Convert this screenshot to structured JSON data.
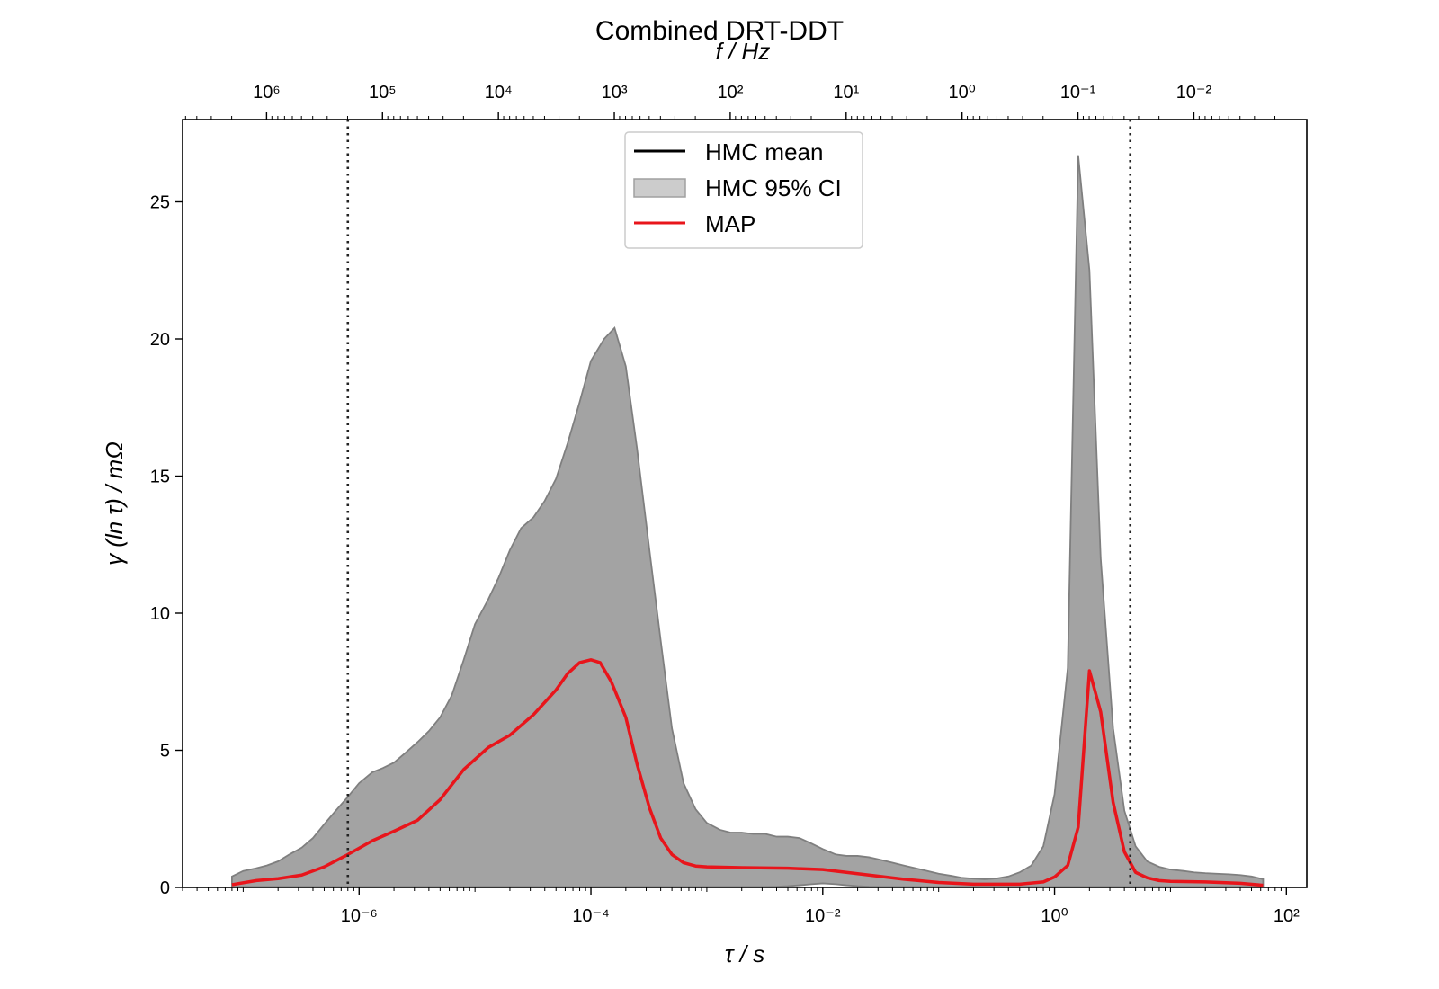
{
  "chart_data": {
    "type": "area",
    "title": "Combined DRT-DDT",
    "xlabel": "τ / s",
    "ylabel": "γ (ln τ) / mΩ",
    "top_xlabel": "f / Hz",
    "x_scale": "log",
    "x_ticks": [
      "10⁻⁶",
      "10⁻⁴",
      "10⁻²",
      "10⁰",
      "10²"
    ],
    "x_tick_values": [
      1e-06,
      0.0001,
      0.01,
      1,
      100
    ],
    "top_x_ticks": [
      "10⁶",
      "10⁵",
      "10⁴",
      "10³",
      "10²",
      "10¹",
      "10⁰",
      "10⁻¹",
      "10⁻²"
    ],
    "top_x_tick_values": [
      1000000.0,
      100000.0,
      10000.0,
      1000.0,
      100.0,
      10.0,
      1,
      0.1,
      0.01
    ],
    "y_ticks": [
      "0",
      "5",
      "10",
      "15",
      "20",
      "25"
    ],
    "y_tick_values": [
      0,
      5,
      10,
      15,
      20,
      25
    ],
    "xlim": [
      3e-08,
      150
    ],
    "ylim": [
      0,
      28
    ],
    "vlines": [
      8e-07,
      4.5
    ],
    "legend": {
      "placement": "upper center",
      "entries": [
        "HMC mean",
        "HMC 95% CI",
        "MAP"
      ]
    },
    "series": [
      {
        "name": "HMC 95% CI",
        "kind": "band",
        "x": [
          8e-08,
          1e-07,
          1.3e-07,
          1.6e-07,
          2e-07,
          2.5e-07,
          3.2e-07,
          4e-07,
          5e-07,
          6.3e-07,
          8e-07,
          1e-06,
          1.3e-06,
          1.6e-06,
          2e-06,
          2.5e-06,
          3.2e-06,
          4e-06,
          5e-06,
          6.3e-06,
          8e-06,
          1e-05,
          1.3e-05,
          1.6e-05,
          2e-05,
          2.5e-05,
          3.2e-05,
          4e-05,
          5e-05,
          6.3e-05,
          8e-05,
          0.0001,
          0.00013,
          0.00016,
          0.0002,
          0.00025,
          0.00032,
          0.0004,
          0.0005,
          0.00063,
          0.0008,
          0.001,
          0.0013,
          0.0016,
          0.002,
          0.0025,
          0.0032,
          0.004,
          0.005,
          0.0063,
          0.008,
          0.01,
          0.013,
          0.016,
          0.02,
          0.025,
          0.032,
          0.04,
          0.05,
          0.063,
          0.08,
          0.1,
          0.13,
          0.16,
          0.2,
          0.25,
          0.32,
          0.4,
          0.5,
          0.63,
          0.8,
          1.0,
          1.3,
          1.6,
          2.0,
          2.5,
          3.2,
          4.0,
          5.0,
          6.3,
          8.0,
          10,
          13,
          16,
          20,
          25,
          32,
          40,
          50,
          63
        ],
        "upper": [
          0.4,
          0.6,
          0.7,
          0.8,
          0.95,
          1.2,
          1.45,
          1.8,
          2.3,
          2.8,
          3.3,
          3.8,
          4.2,
          4.35,
          4.55,
          4.9,
          5.3,
          5.7,
          6.2,
          7.0,
          8.3,
          9.6,
          10.5,
          11.3,
          12.3,
          13.1,
          13.5,
          14.1,
          14.9,
          16.2,
          17.7,
          19.2,
          20.0,
          20.4,
          19.0,
          16.0,
          12.3,
          9.0,
          5.8,
          3.8,
          2.85,
          2.35,
          2.1,
          2.0,
          2.0,
          1.95,
          1.95,
          1.85,
          1.85,
          1.8,
          1.6,
          1.4,
          1.2,
          1.15,
          1.15,
          1.1,
          1.0,
          0.9,
          0.8,
          0.7,
          0.6,
          0.5,
          0.42,
          0.35,
          0.32,
          0.3,
          0.33,
          0.4,
          0.55,
          0.8,
          1.5,
          3.4,
          8.0,
          26.7,
          22.5,
          12.0,
          5.8,
          2.8,
          1.5,
          0.95,
          0.75,
          0.65,
          0.6,
          0.55,
          0.52,
          0.5,
          0.48,
          0.45,
          0.4,
          0.3
        ],
        "lower": [
          0.02,
          0.02,
          0.02,
          0.02,
          0.02,
          0.02,
          0.02,
          0.02,
          0.02,
          0.02,
          0.02,
          0.02,
          0.02,
          0.02,
          0.02,
          0.02,
          0.02,
          0.02,
          0.02,
          0.02,
          0.02,
          0.02,
          0.02,
          0.02,
          0.02,
          0.02,
          0.02,
          0.02,
          0.02,
          0.02,
          0.02,
          0.02,
          0.02,
          0.02,
          0.02,
          0.02,
          0.02,
          0.02,
          0.02,
          0.02,
          0.02,
          0.02,
          0.02,
          0.02,
          0.02,
          0.02,
          0.02,
          0.03,
          0.05,
          0.08,
          0.12,
          0.15,
          0.12,
          0.08,
          0.05,
          0.03,
          0.02,
          0.02,
          0.02,
          0.02,
          0.02,
          0.02,
          0.02,
          0.02,
          0.02,
          0.02,
          0.02,
          0.02,
          0.02,
          0.02,
          0.02,
          0.02,
          0.02,
          0.02,
          0.02,
          0.02,
          0.02,
          0.02,
          0.02,
          0.02,
          0.02,
          0.02,
          0.02,
          0.02,
          0.02,
          0.02,
          0.02,
          0.02,
          0.02,
          0.02
        ]
      },
      {
        "name": "MAP",
        "kind": "line",
        "x": [
          8e-08,
          1.3e-07,
          2e-07,
          3.2e-07,
          5e-07,
          8e-07,
          1.3e-06,
          2e-06,
          3.2e-06,
          5e-06,
          8e-06,
          1.3e-05,
          2e-05,
          3.2e-05,
          5e-05,
          6.3e-05,
          8e-05,
          0.0001,
          0.00012,
          0.00015,
          0.0002,
          0.00025,
          0.00032,
          0.0004,
          0.0005,
          0.00063,
          0.0008,
          0.001,
          0.002,
          0.005,
          0.01,
          0.02,
          0.05,
          0.1,
          0.2,
          0.5,
          0.8,
          1.0,
          1.3,
          1.6,
          2.0,
          2.5,
          3.2,
          4.0,
          5.0,
          6.3,
          8.0,
          10,
          20,
          40,
          63
        ],
        "y": [
          0.1,
          0.25,
          0.32,
          0.45,
          0.75,
          1.2,
          1.7,
          2.05,
          2.45,
          3.2,
          4.3,
          5.1,
          5.55,
          6.3,
          7.2,
          7.8,
          8.2,
          8.3,
          8.2,
          7.5,
          6.2,
          4.5,
          2.9,
          1.8,
          1.2,
          0.9,
          0.78,
          0.75,
          0.72,
          0.7,
          0.65,
          0.5,
          0.3,
          0.18,
          0.12,
          0.12,
          0.2,
          0.38,
          0.8,
          2.2,
          7.9,
          6.4,
          3.1,
          1.3,
          0.55,
          0.35,
          0.25,
          0.22,
          0.2,
          0.15,
          0.08
        ]
      },
      {
        "name": "HMC mean",
        "kind": "line"
      }
    ]
  }
}
